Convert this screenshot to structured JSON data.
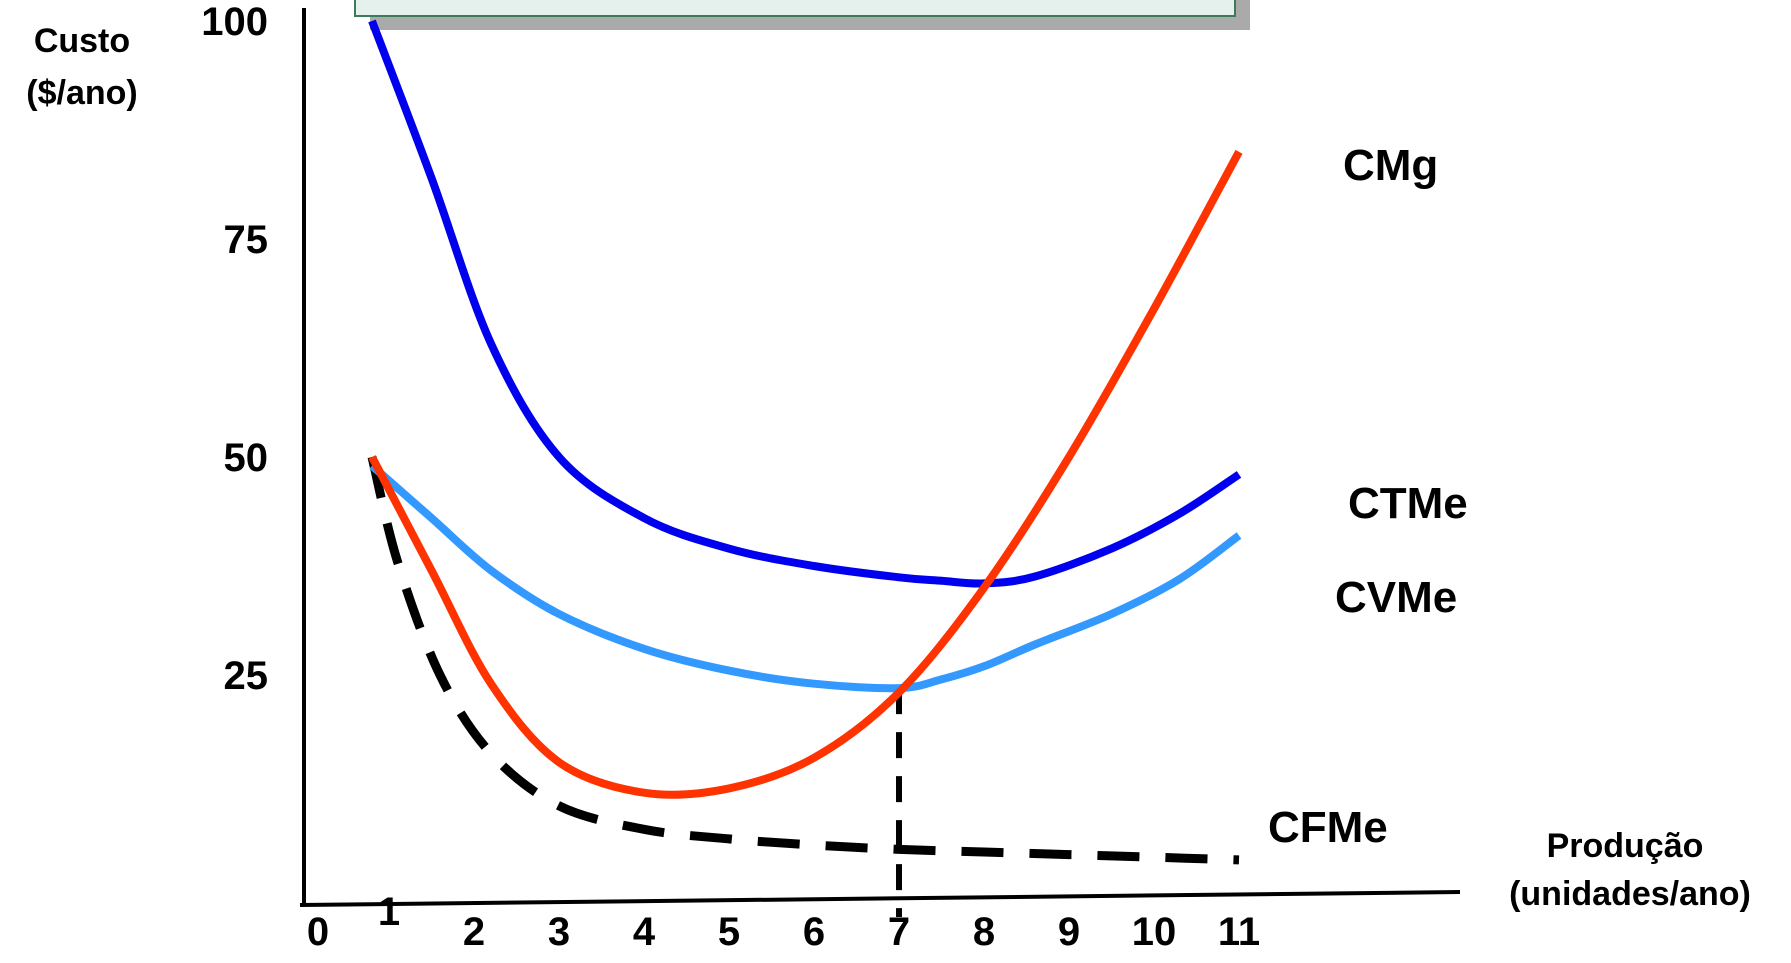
{
  "chart_data": {
    "type": "line",
    "title": "",
    "ylabel_lines": [
      "Custo",
      "($/ano)"
    ],
    "xlabel_lines": [
      "Produção",
      "(unidades/ano)"
    ],
    "xlim": [
      0,
      11
    ],
    "ylim": [
      0,
      100
    ],
    "x_ticks": [
      0,
      1,
      2,
      3,
      4,
      5,
      6,
      7,
      8,
      9,
      10,
      11
    ],
    "x_tick_labels": [
      "0",
      "1",
      "2",
      "3",
      "4",
      "5",
      "6",
      "7",
      "8",
      "9",
      "10",
      "11"
    ],
    "y_ticks": [
      25,
      50,
      75,
      100
    ],
    "y_tick_labels": [
      "25",
      "50",
      "75",
      "100"
    ],
    "grid": false,
    "series": [
      {
        "name": "CTMe",
        "color": "#0000ee",
        "style": "solid",
        "x": [
          0.8,
          1.5,
          2.2,
          3,
          4,
          5,
          6,
          7,
          7.5,
          8,
          8.6,
          9.5,
          10.3,
          11
        ],
        "y": [
          100,
          82,
          63,
          50,
          43,
          39.5,
          37.5,
          36.2,
          35.8,
          35.5,
          36.3,
          39.5,
          43.5,
          48
        ]
      },
      {
        "name": "CVMe",
        "color": "#3399ff",
        "style": "solid",
        "x": [
          0.8,
          1.5,
          2.2,
          3,
          4,
          5,
          6,
          7,
          7.5,
          8,
          8.6,
          9.5,
          10.3,
          11
        ],
        "y": [
          49,
          43,
          37,
          32,
          28,
          25.5,
          24,
          23.5,
          24.5,
          26,
          28.5,
          32,
          36,
          41
        ]
      },
      {
        "name": "CMg",
        "color": "#ff3300",
        "style": "solid",
        "x": [
          0.8,
          1.5,
          2.2,
          3,
          4,
          5,
          6,
          7,
          8,
          9,
          10,
          11
        ],
        "y": [
          50,
          37,
          24,
          15,
          11.5,
          12,
          15.5,
          23,
          35,
          50,
          67,
          85
        ]
      },
      {
        "name": "CFMe",
        "color": "#000000",
        "style": "dashed",
        "x": [
          0.8,
          1.1,
          1.6,
          2.2,
          3,
          4,
          5,
          6,
          7,
          8,
          9,
          10,
          11
        ],
        "y": [
          50,
          38,
          25,
          16,
          10,
          7.3,
          6.2,
          5.5,
          5,
          4.7,
          4.4,
          4.1,
          3.8
        ]
      }
    ],
    "reference_line": {
      "x": 7,
      "y_top": 23.5,
      "color": "#000000",
      "style": "dashed"
    }
  }
}
